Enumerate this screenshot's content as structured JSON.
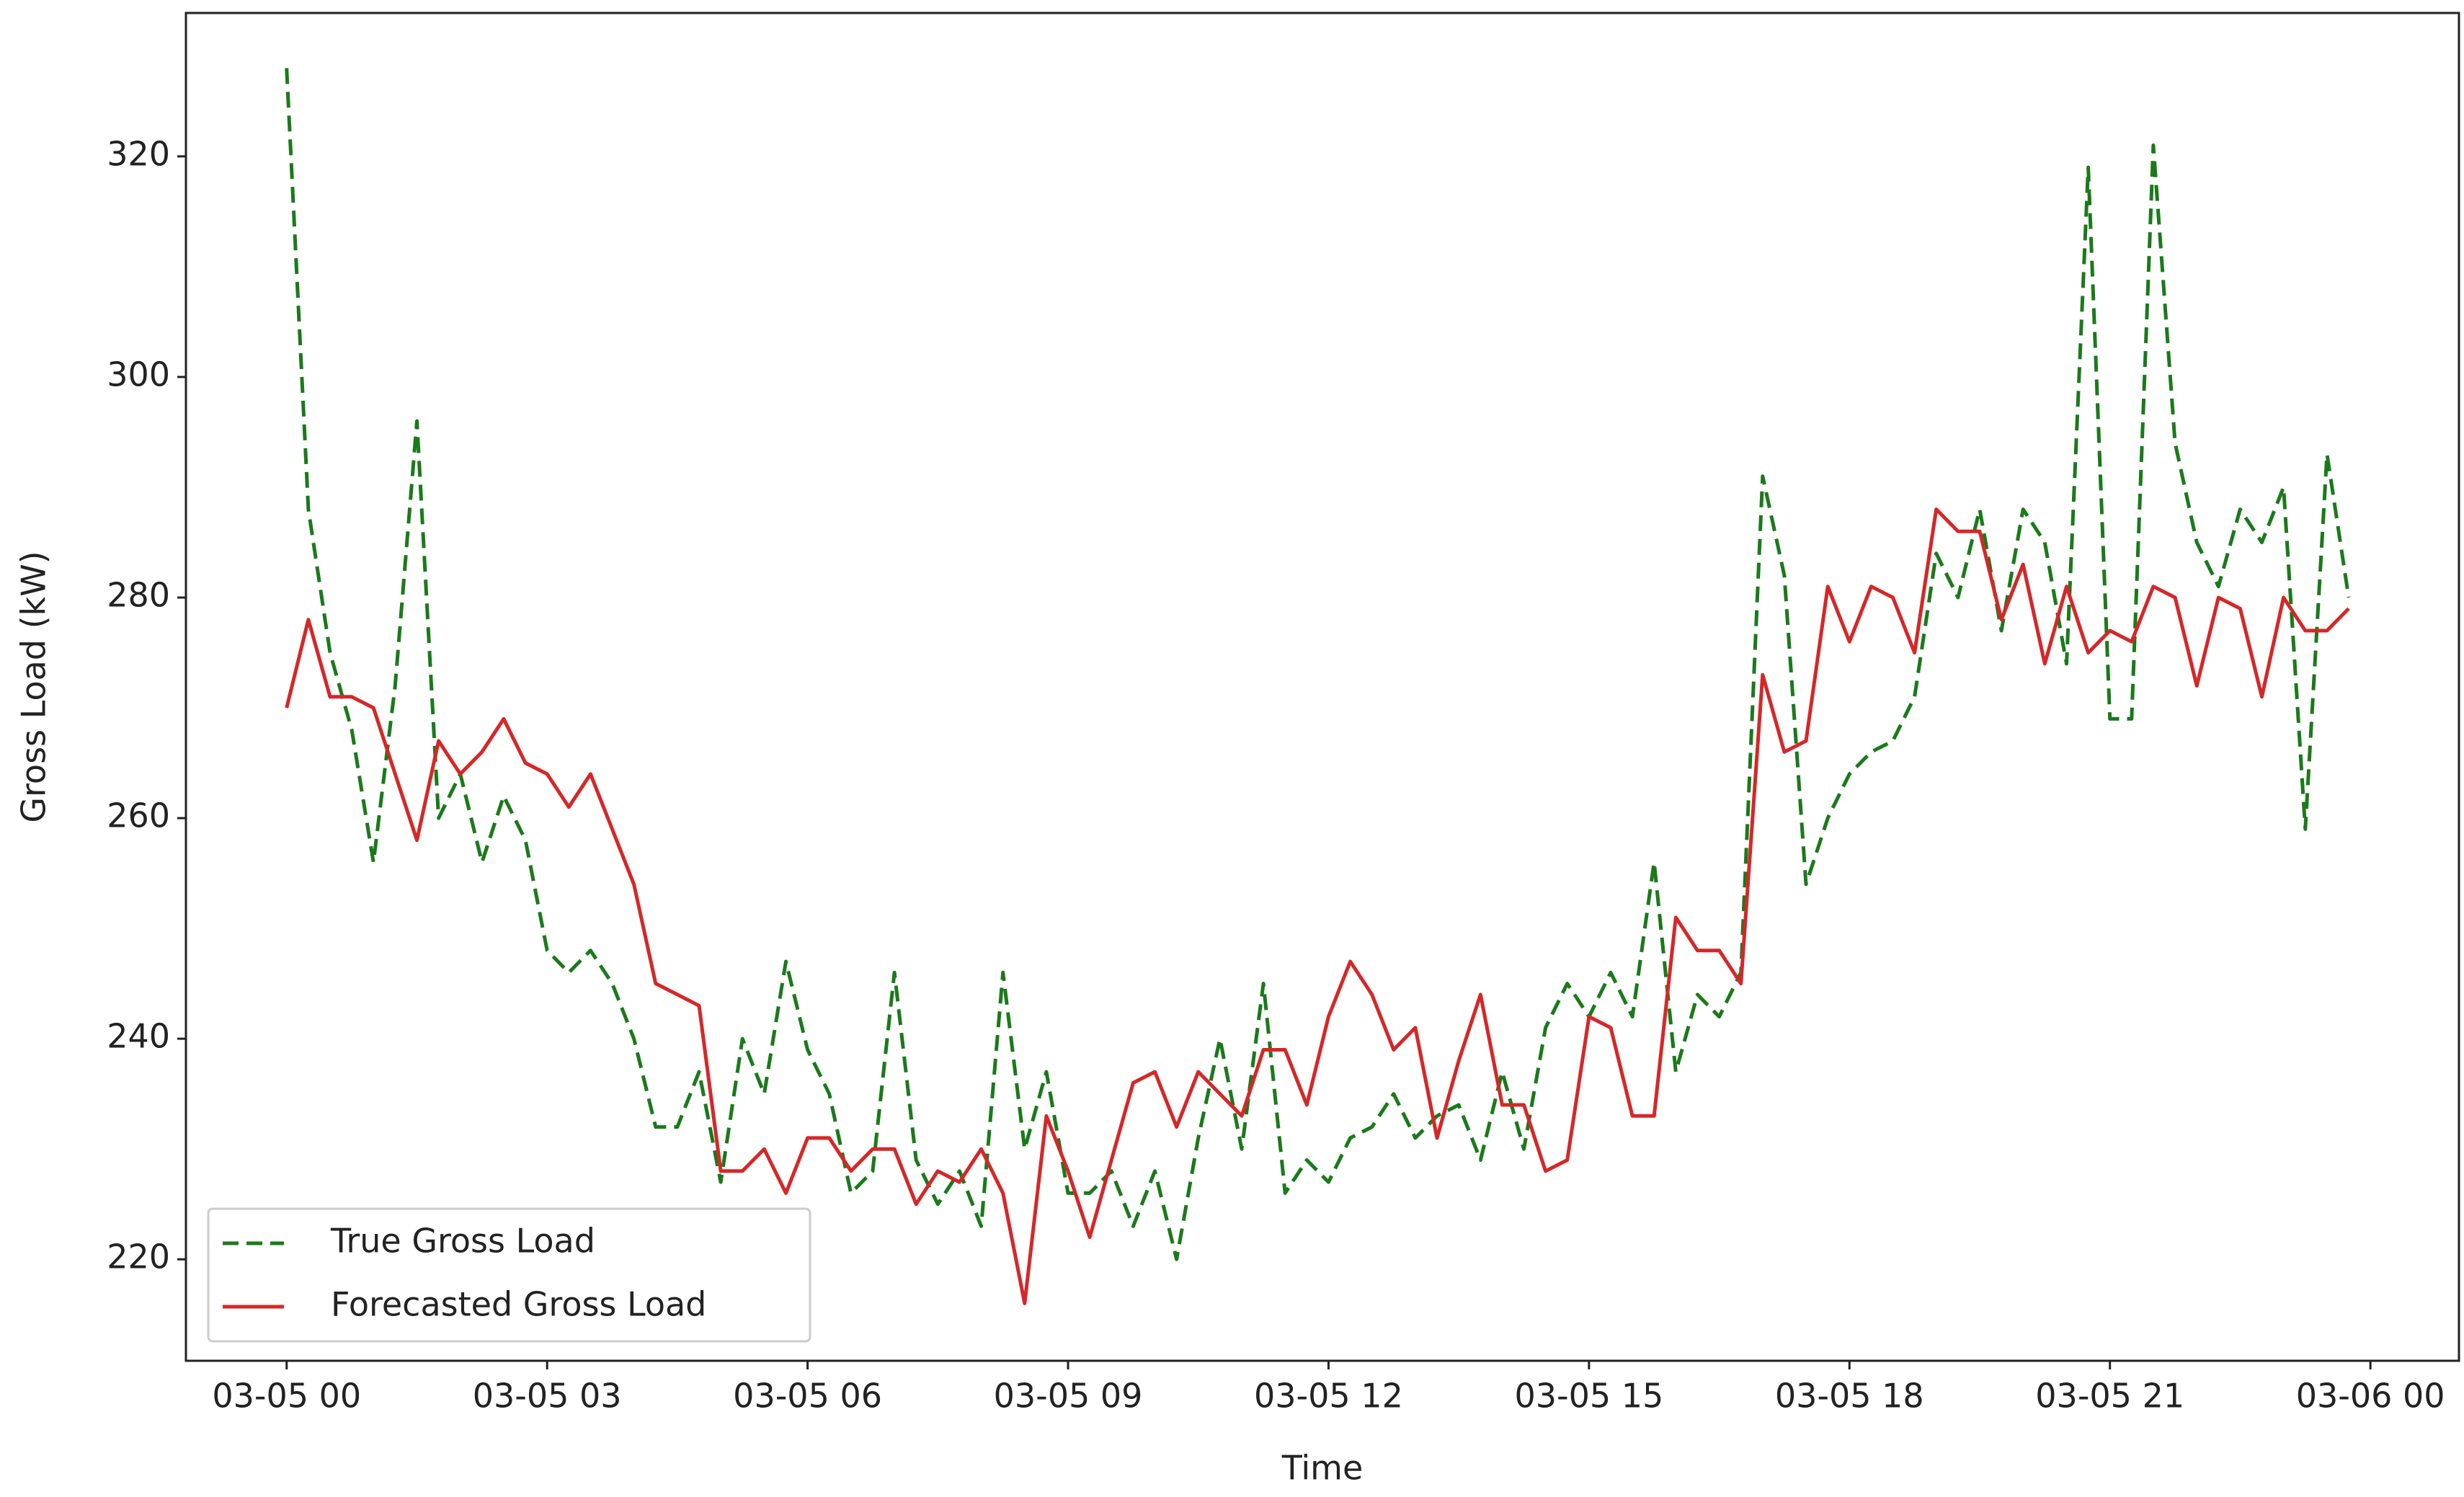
{
  "chart_data": {
    "type": "line",
    "xlabel": "Time",
    "ylabel": "Gross Load (kW)",
    "x": [
      0,
      0.25,
      0.5,
      0.75,
      1,
      1.25,
      1.5,
      1.75,
      2,
      2.25,
      2.5,
      2.75,
      3,
      3.25,
      3.5,
      3.75,
      4,
      4.25,
      4.5,
      4.75,
      5,
      5.25,
      5.5,
      5.75,
      6,
      6.25,
      6.5,
      6.75,
      7,
      7.25,
      7.5,
      7.75,
      8,
      8.25,
      8.5,
      8.75,
      9,
      9.25,
      9.5,
      9.75,
      10,
      10.25,
      10.5,
      10.75,
      11,
      11.25,
      11.5,
      11.75,
      12,
      12.25,
      12.5,
      12.75,
      13,
      13.25,
      13.5,
      13.75,
      14,
      14.25,
      14.5,
      14.75,
      15,
      15.25,
      15.5,
      15.75,
      16,
      16.25,
      16.5,
      16.75,
      17,
      17.25,
      17.5,
      17.75,
      18,
      18.25,
      18.5,
      18.75,
      19,
      19.25,
      19.5,
      19.75,
      20,
      20.25,
      20.5,
      20.75,
      21,
      21.25,
      21.5,
      21.75,
      22,
      22.25,
      22.5,
      22.75,
      23,
      23.25,
      23.5,
      23.75
    ],
    "series": [
      {
        "name": "True Gross Load",
        "color": "#1a7a1a",
        "dash": true,
        "values": [
          328,
          288,
          275,
          268,
          256,
          272,
          296,
          260,
          264,
          256,
          262,
          258,
          248,
          246,
          248,
          245,
          240,
          232,
          232,
          237,
          227,
          240,
          235,
          247,
          239,
          235,
          226,
          228,
          246,
          229,
          225,
          228,
          223,
          246,
          230,
          237,
          226,
          226,
          228,
          223,
          228,
          220,
          231,
          240,
          230,
          245,
          226,
          229,
          227,
          231,
          232,
          235,
          231,
          233,
          234,
          229,
          237,
          230,
          241,
          245,
          242,
          246,
          242,
          256,
          237,
          244,
          242,
          246,
          291,
          282,
          254,
          260,
          264,
          266,
          267,
          271,
          284,
          280,
          288,
          277,
          288,
          285,
          274,
          319,
          269,
          269,
          321,
          294,
          285,
          281,
          288,
          285,
          290,
          259,
          293,
          280
        ]
      },
      {
        "name": "Forecasted Gross Load",
        "color": "#d62728",
        "dash": false,
        "values": [
          270,
          278,
          271,
          271,
          270,
          264,
          258,
          267,
          264,
          266,
          269,
          265,
          264,
          261,
          264,
          259,
          254,
          245,
          244,
          243,
          228,
          228,
          230,
          226,
          231,
          231,
          228,
          230,
          230,
          225,
          228,
          227,
          230,
          226,
          216,
          233,
          228,
          222,
          229,
          236,
          237,
          232,
          237,
          235,
          233,
          239,
          239,
          234,
          242,
          247,
          244,
          239,
          241,
          231,
          238,
          244,
          234,
          234,
          228,
          229,
          242,
          241,
          233,
          233,
          251,
          248,
          248,
          245,
          273,
          266,
          267,
          281,
          276,
          281,
          280,
          275,
          288,
          286,
          286,
          278,
          283,
          274,
          281,
          275,
          277,
          276,
          281,
          280,
          272,
          280,
          279,
          271,
          280,
          277,
          277,
          279
        ]
      }
    ],
    "xlim": [
      -1.16,
      25.02
    ],
    "xticks": [
      {
        "value": 0,
        "label": "03-05 00"
      },
      {
        "value": 3,
        "label": "03-05 03"
      },
      {
        "value": 6,
        "label": "03-05 06"
      },
      {
        "value": 9,
        "label": "03-05 09"
      },
      {
        "value": 12,
        "label": "03-05 12"
      },
      {
        "value": 15,
        "label": "03-05 15"
      },
      {
        "value": 18,
        "label": "03-05 18"
      },
      {
        "value": 21,
        "label": "03-05 21"
      },
      {
        "value": 24,
        "label": "03-06 00"
      }
    ],
    "ylim": [
      210.8,
      333
    ],
    "yticks": [
      220,
      240,
      260,
      280,
      300,
      320
    ],
    "grid": false,
    "legend": "lower left"
  }
}
